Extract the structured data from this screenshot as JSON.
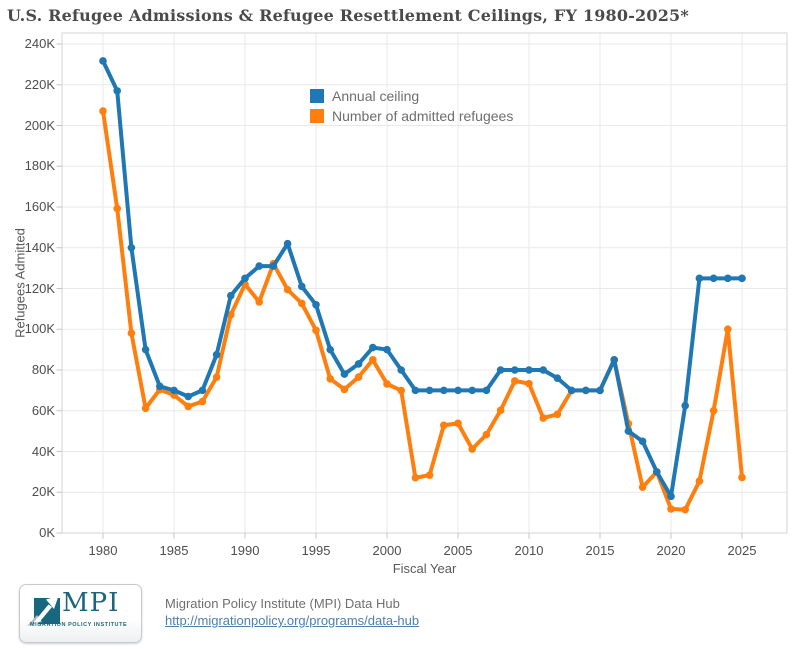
{
  "title": "U.S. Refugee Admissions & Refugee Resettlement Ceilings, FY 1980-2025*",
  "legend": {
    "items": [
      {
        "label": "Annual ceiling",
        "color": "#1f77b4"
      },
      {
        "label": "Number of admitted refugees",
        "color": "#ff7f0e"
      }
    ]
  },
  "axes": {
    "y_label": "Refugees Admitted",
    "x_label": "Fiscal Year",
    "y_ticks": [
      "0K",
      "20K",
      "40K",
      "60K",
      "80K",
      "100K",
      "120K",
      "140K",
      "160K",
      "180K",
      "200K",
      "220K",
      "240K"
    ],
    "x_ticks": [
      "1980",
      "1985",
      "1990",
      "1995",
      "2000",
      "2005",
      "2010",
      "2015",
      "2020",
      "2025"
    ]
  },
  "chart_data": {
    "type": "line",
    "title": "U.S. Refugee Admissions & Refugee Resettlement Ceilings, FY 1980-2025*",
    "xlabel": "Fiscal Year",
    "ylabel": "Refugees Admitted",
    "grid": true,
    "markers": true,
    "legend_position": "top-center-inside",
    "ylim": [
      0,
      245000
    ],
    "y_tick_step": 20000,
    "x": [
      1980,
      1981,
      1982,
      1983,
      1984,
      1985,
      1986,
      1987,
      1988,
      1989,
      1990,
      1991,
      1992,
      1993,
      1994,
      1995,
      1996,
      1997,
      1998,
      1999,
      2000,
      2001,
      2002,
      2003,
      2004,
      2005,
      2006,
      2007,
      2008,
      2009,
      2010,
      2011,
      2012,
      2013,
      2014,
      2015,
      2016,
      2017,
      2018,
      2019,
      2020,
      2021,
      2022,
      2023,
      2024,
      2025
    ],
    "series": [
      {
        "name": "Annual ceiling",
        "color": "#1f77b4",
        "values": [
          231700,
          217000,
          140000,
          90000,
          72000,
          70000,
          67000,
          70000,
          87500,
          116500,
          125000,
          131000,
          131000,
          142000,
          121000,
          112000,
          90000,
          78000,
          83000,
          91000,
          90000,
          80000,
          70000,
          70000,
          70000,
          70000,
          70000,
          70000,
          80000,
          80000,
          80000,
          80000,
          76000,
          70000,
          70000,
          70000,
          85000,
          50000,
          45000,
          30000,
          18000,
          62500,
          125000,
          125000,
          125000,
          125000
        ]
      },
      {
        "name": "Number of admitted refugees",
        "color": "#ff7f0e",
        "values": [
          207116,
          159252,
          98096,
          61218,
          70393,
          67704,
          62146,
          64528,
          76483,
          107070,
          122066,
          113389,
          132173,
          119448,
          112682,
          99490,
          75693,
          70488,
          76554,
          85006,
          73147,
          69886,
          27131,
          28403,
          52873,
          53813,
          41223,
          48282,
          60191,
          74654,
          73311,
          56424,
          58238,
          69926,
          69987,
          69933,
          84994,
          53716,
          22491,
          30000,
          11814,
          11411,
          25465,
          60014,
          100034,
          27300
        ]
      }
    ]
  },
  "footer": {
    "logo_mpi": "MPI",
    "logo_sub": "MIGRATION POLICY INSTITUTE",
    "source_line": "Migration Policy Institute (MPI) Data Hub",
    "link_text": "http://migrationpolicy.org/programs/data-hub",
    "link_href": "http://migrationpolicy.org/programs/data-hub"
  },
  "colors": {
    "ceiling_blue": "#1f77b4",
    "admitted_orange": "#ff7f0e",
    "gridline": "#e9e9e9",
    "plot_border": "#d6d6d6",
    "tick": "#c4c4c4",
    "title_text": "#4a4a4a",
    "axis_text": "#4e4e4e",
    "logo_teal": "#1c657c",
    "link_blue": "#4e7fae"
  }
}
